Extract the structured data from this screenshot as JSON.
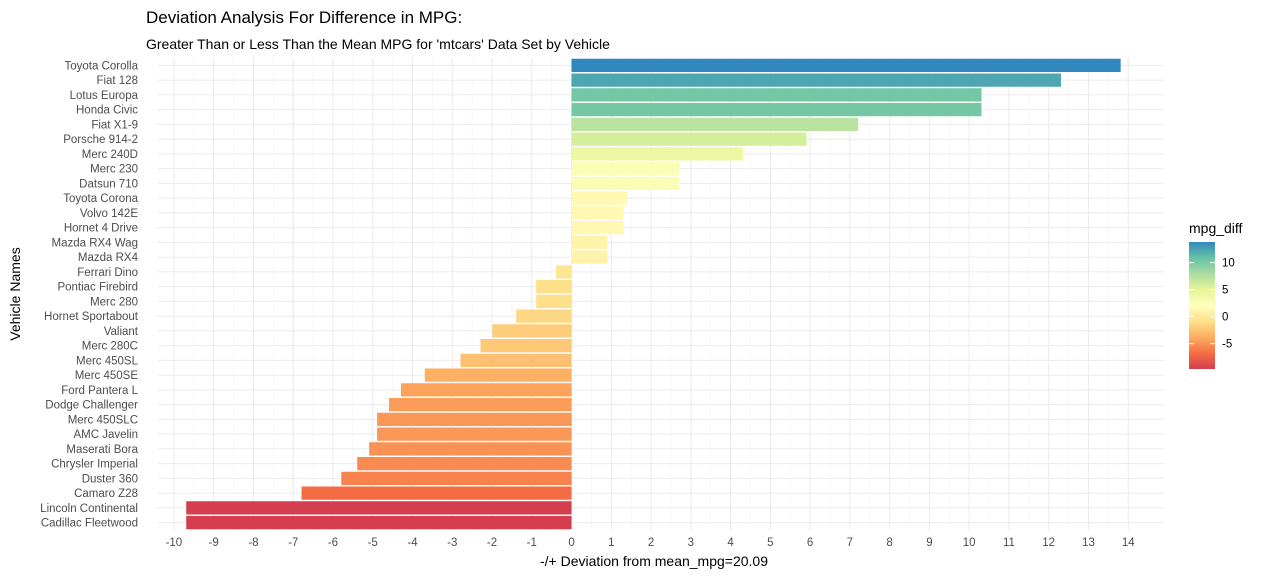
{
  "chart_data": {
    "type": "bar",
    "orientation": "horizontal",
    "title": "Deviation Analysis For Difference in MPG:",
    "subtitle": "Greater Than or Less Than the Mean MPG for 'mtcars' Data Set by Vehicle",
    "xlabel": "-/+ Deviation from mean_mpg=20.09",
    "ylabel": "Vehicle Names",
    "xlim": [
      -10.4,
      14.9
    ],
    "x_ticks": [
      -10,
      -9,
      -8,
      -7,
      -6,
      -5,
      -4,
      -3,
      -2,
      -1,
      0,
      1,
      2,
      3,
      4,
      5,
      6,
      7,
      8,
      9,
      10,
      11,
      12,
      13,
      14
    ],
    "grid": true,
    "legend": {
      "title": "mpg_diff",
      "position": "right",
      "ticks": [
        10,
        5,
        0,
        -5
      ],
      "min": -9.69,
      "max": 13.81,
      "palette": [
        "#D53E4F",
        "#F46D43",
        "#FDAE61",
        "#FEE08B",
        "#FFFFBF",
        "#E6F598",
        "#ABDDA4",
        "#66C2A5",
        "#3288BD"
      ]
    },
    "categories": [
      "Toyota Corolla",
      "Fiat 128",
      "Lotus Europa",
      "Honda Civic",
      "Fiat X1-9",
      "Porsche 914-2",
      "Merc 240D",
      "Merc 230",
      "Datsun 710",
      "Toyota Corona",
      "Volvo 142E",
      "Hornet 4 Drive",
      "Mazda RX4 Wag",
      "Mazda RX4",
      "Ferrari Dino",
      "Pontiac Firebird",
      "Merc 280",
      "Hornet Sportabout",
      "Valiant",
      "Merc 280C",
      "Merc 450SL",
      "Merc 450SE",
      "Ford Pantera L",
      "Dodge Challenger",
      "Merc 450SLC",
      "AMC Javelin",
      "Maserati Bora",
      "Chrysler Imperial",
      "Duster 360",
      "Camaro Z28",
      "Lincoln Continental",
      "Cadillac Fleetwood"
    ],
    "values": [
      13.81,
      12.31,
      10.31,
      10.31,
      7.21,
      5.91,
      4.31,
      2.71,
      2.71,
      1.41,
      1.31,
      1.31,
      0.91,
      0.91,
      -0.39,
      -0.89,
      -0.89,
      -1.39,
      -1.99,
      -2.29,
      -2.79,
      -3.69,
      -4.29,
      -4.59,
      -4.89,
      -4.89,
      -5.09,
      -5.39,
      -5.79,
      -6.79,
      -9.69,
      -9.69
    ]
  }
}
